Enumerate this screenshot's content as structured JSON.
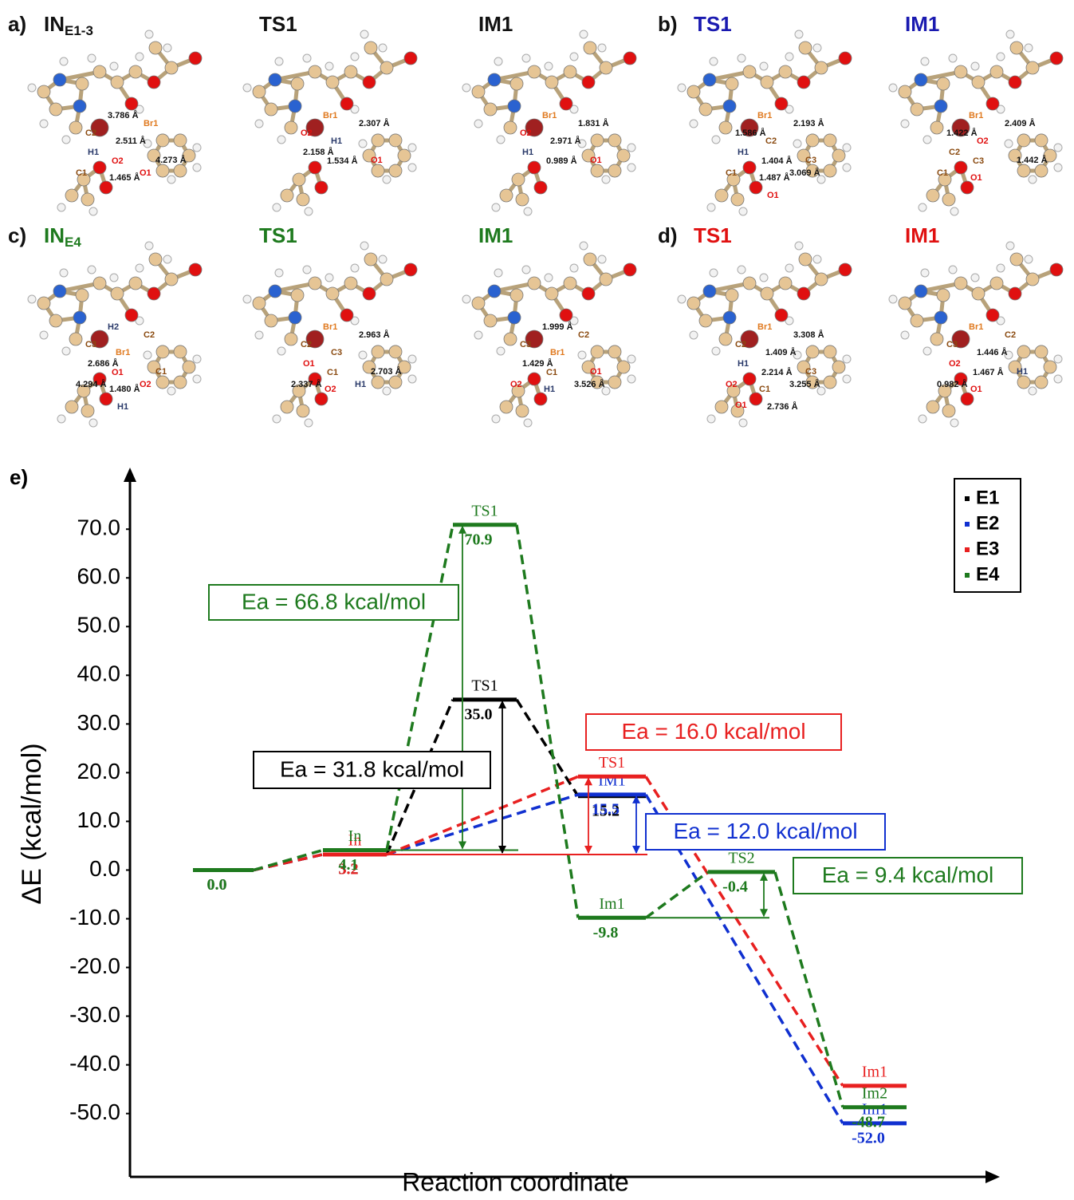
{
  "panels": [
    {
      "letter": "a)",
      "color": "#111111",
      "structures": [
        {
          "title": {
            "main": "IN",
            "sub": "E1-3"
          },
          "labels": [
            "3.786 Å",
            "Br1",
            "C2",
            "2.511 Å",
            "H1",
            "O2",
            "4.273 Å",
            "C1",
            "1.465 Å",
            "O1"
          ]
        },
        {
          "title": "TS1",
          "labels": [
            "Br1",
            "2.307 Å",
            "O2",
            "H1",
            "2.158 Å",
            "1.534 Å",
            "O1"
          ]
        },
        {
          "title": "IM1",
          "labels": [
            "Br1",
            "1.831 Å",
            "O2",
            "2.971 Å",
            "H1",
            "0.989 Å",
            "O1"
          ]
        }
      ]
    },
    {
      "letter": "b)",
      "color": "#1a1ab0",
      "structures": [
        {
          "title": "TS1",
          "labels": [
            "Br1",
            "2.193 Å",
            "1.586 Å",
            "C2",
            "H1",
            "1.404 Å",
            "C3",
            "C1",
            "1.487 Å",
            "3.069 Å",
            "O1"
          ]
        },
        {
          "title": "IM1",
          "labels": [
            "Br1",
            "2.409 Å",
            "1.422 Å",
            "O2",
            "C2",
            "C3",
            "1.442 Å",
            "C1",
            "O1"
          ]
        }
      ]
    },
    {
      "letter": "c)",
      "color": "#1e7a1e",
      "structures": [
        {
          "title": {
            "main": "IN",
            "sub": "E4"
          },
          "labels": [
            "H2",
            "C2",
            "C3",
            "Br1",
            "2.686 Å",
            "O1",
            "C1",
            "4.294 Å",
            "1.480 Å",
            "O2",
            "H1"
          ]
        },
        {
          "title": "TS1",
          "labels": [
            "Br1",
            "2.963 Å",
            "C2",
            "C3",
            "O1",
            "C1",
            "2.703 Å",
            "2.337 Å",
            "O2",
            "H1"
          ]
        },
        {
          "title": "IM1",
          "labels": [
            "1.999 Å",
            "C2",
            "C3",
            "Br1",
            "1.429 Å",
            "C1",
            "O1",
            "O2",
            "H1",
            "3.526 Å"
          ]
        }
      ]
    },
    {
      "letter": "d)",
      "color": "#e01010",
      "structures": [
        {
          "title": "TS1",
          "labels": [
            "Br1",
            "3.308 Å",
            "C2",
            "1.409 Å",
            "H1",
            "2.214 Å",
            "C3",
            "O2",
            "C1",
            "3.255 Å",
            "2.736 Å",
            "O1"
          ]
        },
        {
          "title": "IM1",
          "labels": [
            "Br1",
            "C2",
            "C3",
            "1.446 Å",
            "O2",
            "1.467 Å",
            "H1",
            "0.982 Å",
            "O1"
          ]
        }
      ]
    }
  ],
  "chart_letter": "e)",
  "chart_data": {
    "type": "energy-profile",
    "y_label": "ΔE (kcal/mol)",
    "x_label": "Reaction coordinate",
    "categories": [
      null,
      null,
      null,
      null,
      null,
      null
    ],
    "ylim": [
      -63,
      82
    ],
    "yticks": [
      {
        "value": -50,
        "label": "-50.0"
      },
      {
        "value": -40,
        "label": "-40.0"
      },
      {
        "value": -30,
        "label": "-30.0"
      },
      {
        "value": -20,
        "label": "-20.0"
      },
      {
        "value": -10,
        "label": "-10.0"
      },
      {
        "value": 0,
        "label": "0.0"
      },
      {
        "value": 10,
        "label": "10.0"
      },
      {
        "value": 20,
        "label": "20.0"
      },
      {
        "value": 30,
        "label": "30.0"
      },
      {
        "value": 40,
        "label": "40.0"
      },
      {
        "value": 50,
        "label": "50.0"
      },
      {
        "value": 60,
        "label": "60.0"
      },
      {
        "value": 70,
        "label": "70.0"
      }
    ],
    "legend_position": "upper right",
    "series": [
      {
        "name": "E1",
        "color": "#000000",
        "values": [
          0,
          3.2,
          35.0,
          15.2,
          null,
          null
        ],
        "level_labels": [
          null,
          null,
          "TS1",
          null,
          null,
          null
        ],
        "value_labels": [
          "0.0",
          "3.2",
          "35.0",
          "15.2",
          null,
          null
        ]
      },
      {
        "name": "E2",
        "color": "#1030d0",
        "values": [
          0,
          3.2,
          null,
          15.5,
          null,
          -52.0
        ],
        "level_labels": [
          null,
          null,
          null,
          "IM1",
          null,
          "Im1"
        ],
        "value_labels": [
          null,
          null,
          null,
          "15.5",
          null,
          "-52.0"
        ]
      },
      {
        "name": "E3",
        "color": "#e82020",
        "values": [
          0,
          3.2,
          null,
          19.2,
          null,
          -44.3
        ],
        "level_labels": [
          null,
          "In",
          null,
          "TS1",
          null,
          "Im1"
        ],
        "value_labels": [
          null,
          "3.2",
          null,
          null,
          null,
          null
        ]
      },
      {
        "name": "E4",
        "color": "#1e7a1e",
        "values": [
          0,
          4.1,
          70.9,
          -9.8,
          -0.4,
          -48.7
        ],
        "level_labels": [
          null,
          "In",
          "TS1",
          "Im1",
          "TS2",
          "Im2"
        ],
        "value_labels": [
          "0.0",
          "4.1",
          "70.9",
          "-9.8",
          "-0.4",
          "-48.7"
        ]
      }
    ],
    "annotations": [
      {
        "text": "Ea = 66.8 kcal/mol",
        "color": "#1e7a1e"
      },
      {
        "text": "Ea = 31.8 kcal/mol",
        "color": "#000000"
      },
      {
        "text": "Ea = 16.0 kcal/mol",
        "color": "#e82020"
      },
      {
        "text": "Ea = 12.0 kcal/mol",
        "color": "#1030d0"
      },
      {
        "text": "Ea = 9.4 kcal/mol",
        "color": "#1e7a1e"
      }
    ]
  }
}
